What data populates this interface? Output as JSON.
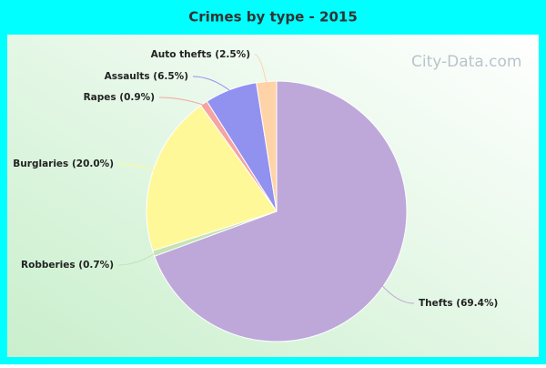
{
  "chart_data": {
    "type": "pie",
    "title": "Crimes by type - 2015",
    "watermark": "City-Data.com",
    "categories": [
      "Thefts",
      "Robberies",
      "Burglaries",
      "Rapes",
      "Assaults",
      "Auto thefts"
    ],
    "values": [
      69.4,
      0.7,
      20.0,
      0.9,
      6.5,
      2.5
    ],
    "value_labels": [
      "(69.4%)",
      "(0.7%)",
      "(20.0%)",
      "(0.9%)",
      "(6.5%)",
      "(2.5%)"
    ],
    "colors": [
      "#bea8d9",
      "#c6e2b4",
      "#fff899",
      "#f5a3a3",
      "#9191f0",
      "#ffd3a8"
    ]
  }
}
